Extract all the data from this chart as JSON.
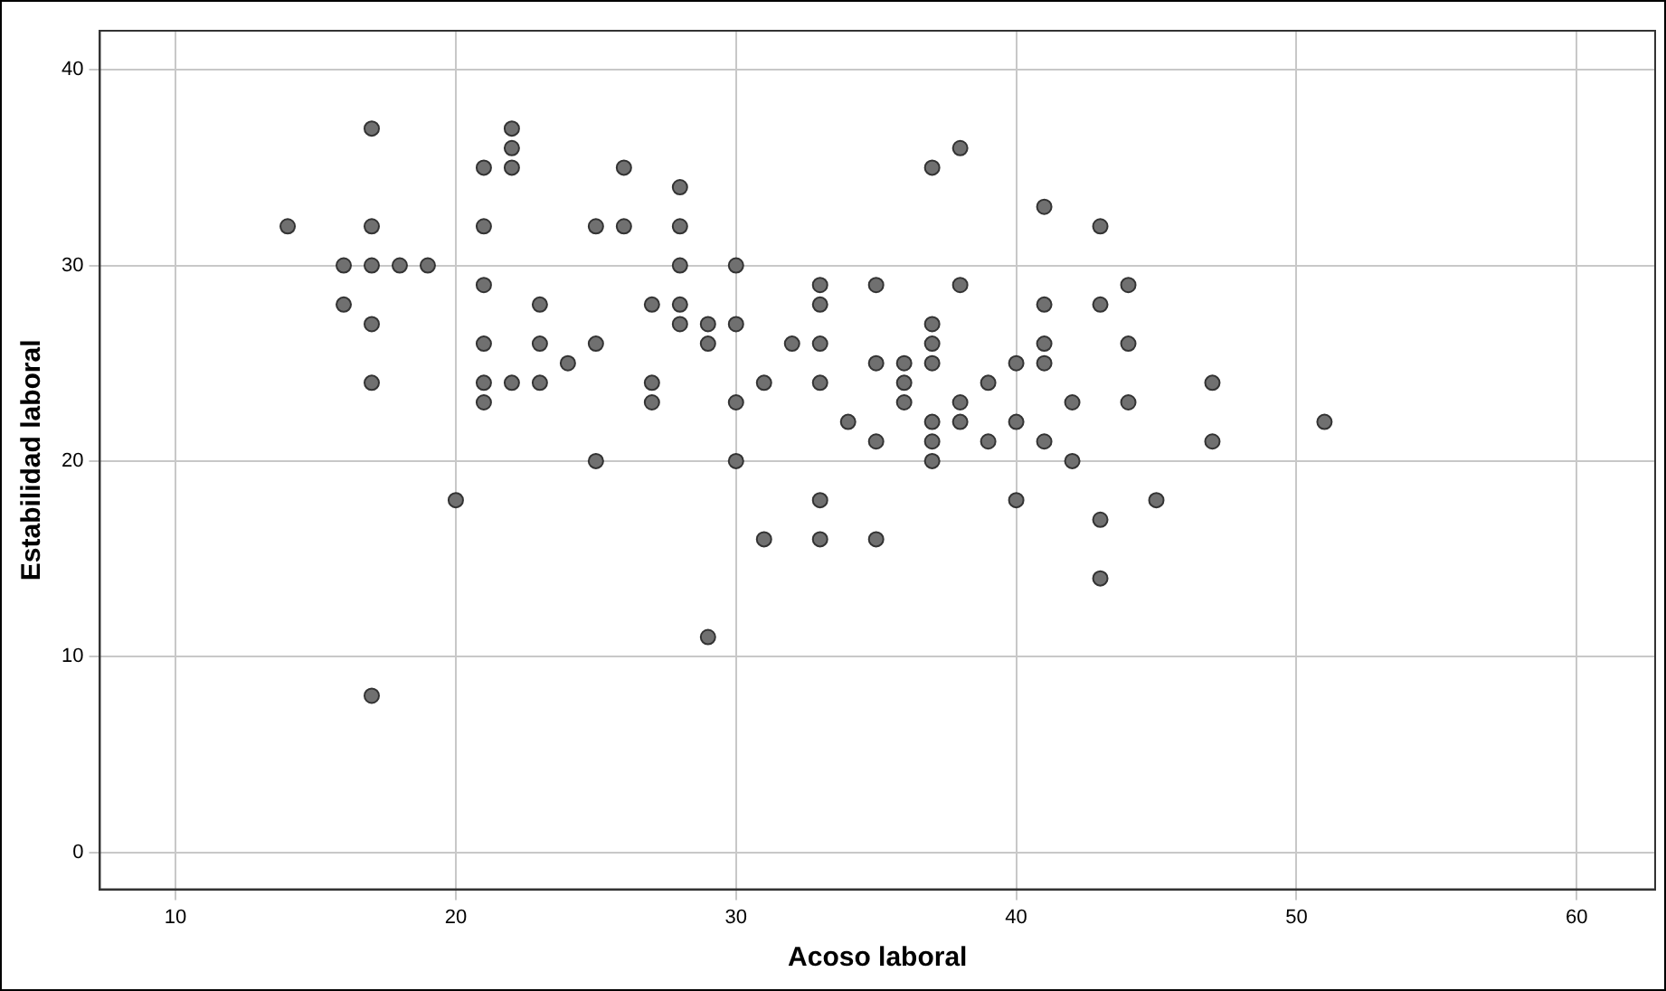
{
  "chart_data": {
    "type": "scatter",
    "xlabel": "Acoso laboral",
    "ylabel": "Estabilidad laboral",
    "xlim": [
      7.3,
      62.8
    ],
    "ylim": [
      -1.9,
      42
    ],
    "xticks": [
      10,
      20,
      30,
      40,
      50,
      60
    ],
    "yticks": [
      0,
      10,
      20,
      30,
      40
    ],
    "grid": true,
    "marker": "circle",
    "legend": false,
    "series": [
      {
        "color": "#707070",
        "x": [
          14,
          16,
          16,
          17,
          17,
          17,
          17,
          17,
          17,
          18,
          19,
          20,
          21,
          21,
          21,
          21,
          21,
          21,
          22,
          22,
          22,
          22,
          23,
          23,
          23,
          24,
          25,
          25,
          25,
          26,
          26,
          27,
          27,
          27,
          28,
          28,
          28,
          28,
          28,
          29,
          29,
          29,
          30,
          30,
          30,
          30,
          31,
          31,
          32,
          33,
          33,
          33,
          33,
          33,
          33,
          34,
          35,
          35,
          35,
          35,
          36,
          36,
          36,
          37,
          37,
          37,
          37,
          37,
          37,
          37,
          38,
          38,
          38,
          38,
          39,
          39,
          40,
          40,
          40,
          41,
          41,
          41,
          41,
          41,
          42,
          42,
          43,
          43,
          43,
          43,
          44,
          44,
          44,
          45,
          47,
          47,
          51
        ],
        "values": [
          32,
          30,
          28,
          37,
          32,
          30,
          27,
          24,
          8,
          30,
          30,
          18,
          35,
          32,
          29,
          26,
          24,
          23,
          37,
          36,
          35,
          24,
          28,
          26,
          24,
          25,
          32,
          26,
          20,
          35,
          32,
          28,
          24,
          23,
          34,
          32,
          30,
          28,
          27,
          27,
          26,
          11,
          30,
          27,
          23,
          20,
          24,
          16,
          26,
          29,
          28,
          26,
          24,
          18,
          16,
          22,
          29,
          25,
          21,
          16,
          25,
          24,
          23,
          35,
          27,
          26,
          25,
          22,
          21,
          20,
          36,
          29,
          23,
          22,
          24,
          21,
          25,
          22,
          18,
          33,
          28,
          26,
          25,
          21,
          23,
          20,
          32,
          28,
          17,
          14,
          29,
          26,
          23,
          18,
          24,
          21,
          22
        ]
      }
    ]
  }
}
